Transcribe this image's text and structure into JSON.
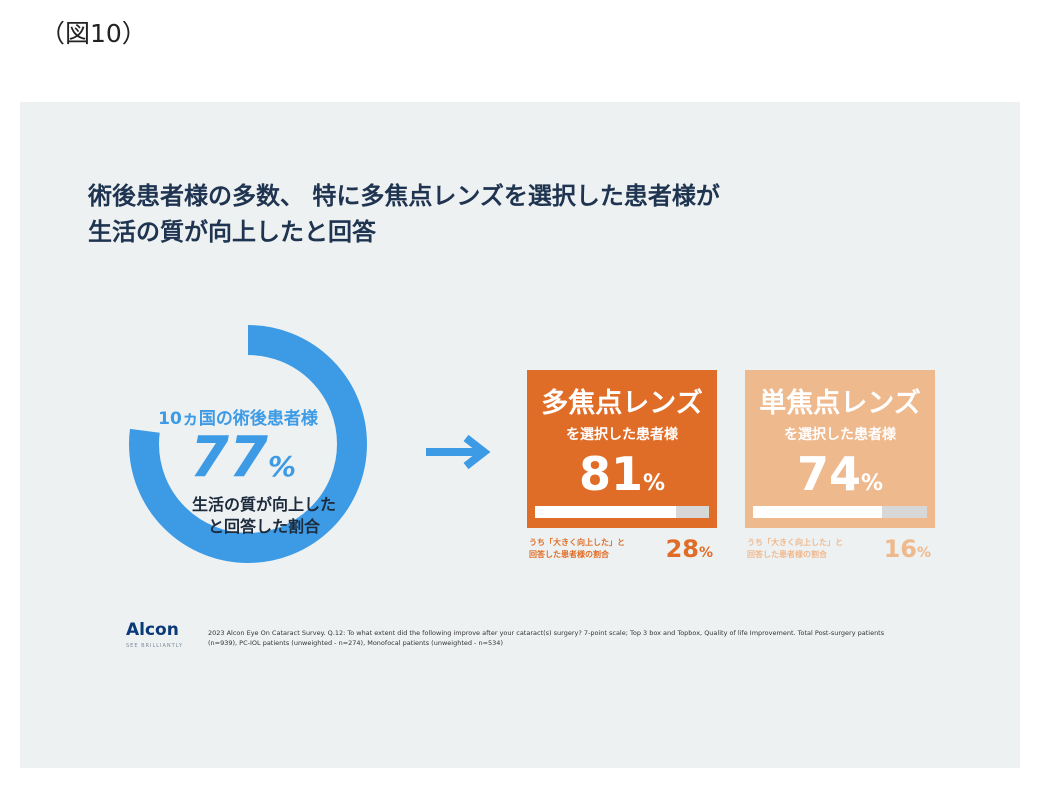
{
  "figure_label": "（図10）",
  "headline": {
    "line1": "術後患者様の多数、 特に多焦点レンズを選択した患者様が",
    "line2": "生活の質が向上したと回答"
  },
  "donut": {
    "top_label": "10ヵ国の術後患者様",
    "value": 77,
    "value_text": "77",
    "unit": "%",
    "caption_line1": "生活の質が向上した",
    "caption_line2": "と回答した割合"
  },
  "cards": [
    {
      "title": "多焦点レンズ",
      "subtitle": "を選択した患者様",
      "value": 81,
      "value_text": "81",
      "unit": "%",
      "note_line1": "うち「大きく向上した」と",
      "note_line2": "回答した患者様の割合",
      "note_value": 28,
      "note_value_text": "28",
      "note_unit": "%"
    },
    {
      "title": "単焦点レンズ",
      "subtitle": "を選択した患者様",
      "value": 74,
      "value_text": "74",
      "unit": "%",
      "note_line1": "うち「大きく向上した」と",
      "note_line2": "回答した患者様の割合",
      "note_value": 16,
      "note_value_text": "16",
      "note_unit": "%"
    }
  ],
  "brand": {
    "name": "Alcon",
    "tagline": "SEE BRILLIANTLY"
  },
  "source_note": "2023 Alcon Eye On Cataract Survey. Q.12: To what extent did the following improve after your cataract(s) surgery? 7-point scale; Top 3 box and Topbox, Quality of life Improvement. Total Post-surgery patients (n=939), PC-IOL patients (unweighted - n=274), Monofocal patients (unweighted - n=534)",
  "colors": {
    "donut": "#3d9be6",
    "multifocal": "#e06d27",
    "monofocal": "#efb98e",
    "headline": "#1f3450",
    "arrow": "#3d9be6"
  },
  "chart_data": [
    {
      "type": "pie",
      "title": "",
      "labels": [
        "生活の質が向上したと回答した割合"
      ],
      "values": [
        77
      ],
      "unit": "%"
    },
    {
      "type": "bar",
      "categories": [
        "多焦点レンズ",
        "単焦点レンズ"
      ],
      "series": [
        {
          "name": "",
          "values": [
            81,
            74
          ]
        }
      ],
      "ylim": [
        0,
        100
      ],
      "unit": "%"
    },
    {
      "type": "bar",
      "categories": [
        "多焦点レンズ",
        "単焦点レンズ"
      ],
      "series": [
        {
          "name": "うち「大きく向上した」と回答した患者様の割合",
          "values": [
            28,
            16
          ]
        }
      ],
      "unit": "%"
    }
  ]
}
